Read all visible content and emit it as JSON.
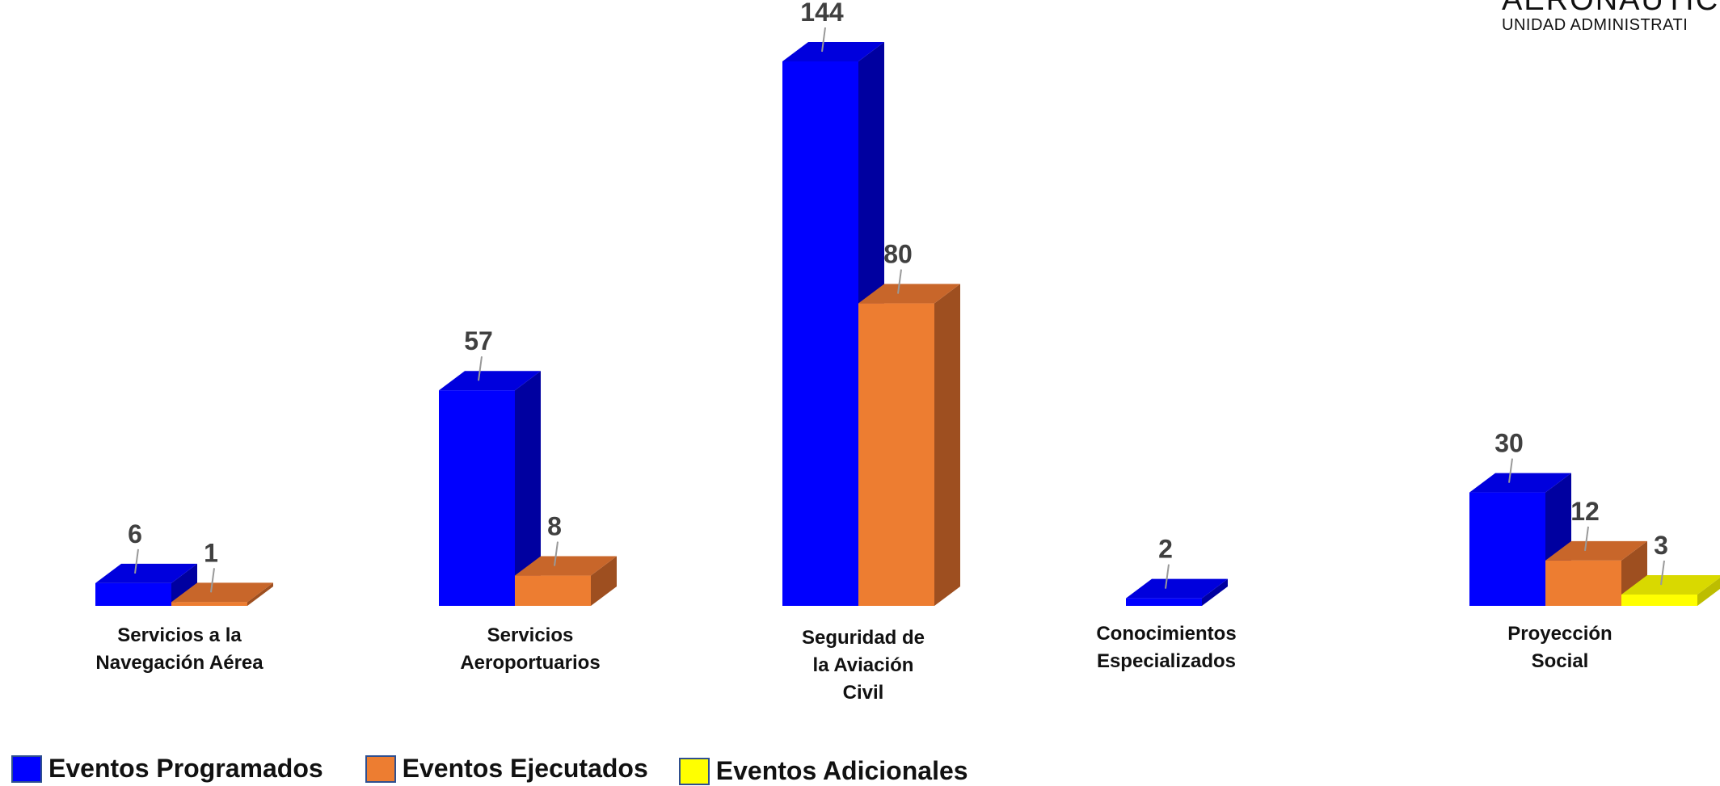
{
  "logo": {
    "top": "AERONAUTIC",
    "bottom": "UNIDAD ADMINISTRATI"
  },
  "chart_data": {
    "type": "bar",
    "categories": [
      [
        "Servicios a la",
        "Navegación Aérea"
      ],
      [
        "Servicios",
        "Aeroportuarios"
      ],
      [
        "Seguridad de",
        "la Aviación",
        "Civil"
      ],
      [
        "Conocimientos",
        "Especializados"
      ],
      [
        "Proyección",
        "Social"
      ]
    ],
    "series": [
      {
        "name": "Eventos Programados",
        "values": [
          6,
          57,
          144,
          2,
          30
        ],
        "color": "#0000ff",
        "top": "#0000dd",
        "side": "#0000a0"
      },
      {
        "name": "Eventos Ejecutados",
        "values": [
          1,
          8,
          80,
          null,
          12
        ],
        "color": "#ed7d31",
        "top": "#c8662a",
        "side": "#9e4f20"
      },
      {
        "name": "Eventos Adicionales",
        "values": [
          null,
          null,
          null,
          null,
          3
        ],
        "color": "#ffff00",
        "top": "#d9d900",
        "side": "#bdbd00"
      }
    ],
    "ylim": [
      0,
      144
    ]
  },
  "legend": [
    {
      "label": "Eventos Programados",
      "color": "#0000ff"
    },
    {
      "label": "Eventos Ejecutados",
      "color": "#ed7d31"
    },
    {
      "label": "Eventos Adicionales",
      "color": "#ffff00"
    }
  ]
}
